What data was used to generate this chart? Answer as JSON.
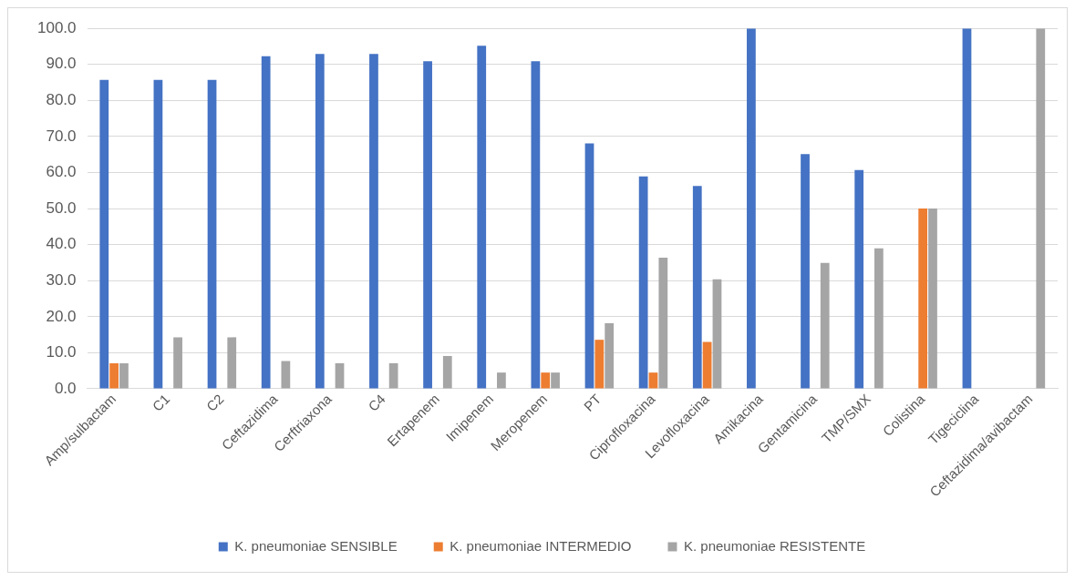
{
  "chart_data": {
    "type": "bar",
    "categories": [
      "Amp/sulbactam",
      "C1",
      "C2",
      "Ceftazidima",
      "Cerftriaxona",
      "C4",
      "Ertapenem",
      "Imipenem",
      "Meropenem",
      "PT",
      "Ciprofloxacina",
      "Levofloxacina",
      "Amikacina",
      "Gentamicina",
      "TMP/SMX",
      "Colistina",
      "Tigeciclina",
      "Ceftazidima/avibactam"
    ],
    "series": [
      {
        "name": "K. pneumoniae SENSIBLE",
        "color": "#4472c4",
        "values": [
          85.7,
          85.7,
          85.7,
          92.3,
          92.9,
          92.9,
          90.9,
          95.2,
          90.9,
          68.1,
          58.9,
          56.3,
          100,
          65.1,
          60.7,
          0,
          100,
          0
        ]
      },
      {
        "name": "K. pneumoniae INTERMEDIO",
        "color": "#ed7d31",
        "values": [
          7.1,
          0,
          0,
          0,
          0,
          0,
          0,
          0,
          4.5,
          13.6,
          4.5,
          13.0,
          0,
          0,
          0,
          50,
          0,
          0
        ]
      },
      {
        "name": "K. pneumoniae RESISTENTE",
        "color": "#a5a5a5",
        "values": [
          7.1,
          14.3,
          14.3,
          7.7,
          7.1,
          7.1,
          9.1,
          4.5,
          4.5,
          18.2,
          36.4,
          30.4,
          0,
          34.9,
          39.0,
          50,
          0,
          100
        ]
      }
    ],
    "ylim": [
      0,
      100
    ],
    "yticks": [
      {
        "value": 0,
        "label": "0.0"
      },
      {
        "value": 10,
        "label": "10.0"
      },
      {
        "value": 20,
        "label": "20.0"
      },
      {
        "value": 30,
        "label": "30.0"
      },
      {
        "value": 40,
        "label": "40.0"
      },
      {
        "value": 50,
        "label": "50.0"
      },
      {
        "value": 60,
        "label": "60.0"
      },
      {
        "value": 70,
        "label": "70.0"
      },
      {
        "value": 80,
        "label": "80.0"
      },
      {
        "value": 90,
        "label": "90.0"
      },
      {
        "value": 100,
        "label": "100.0"
      }
    ],
    "grid": "y",
    "legend": "bottom"
  }
}
